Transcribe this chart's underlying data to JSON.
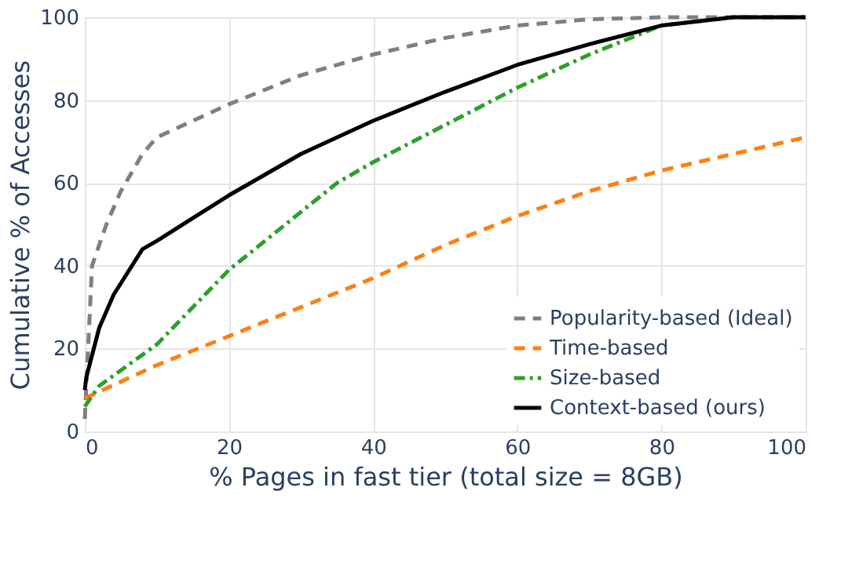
{
  "chart_data": {
    "type": "line",
    "xlabel": "% Pages in fast tier (total size = 8GB)",
    "ylabel": "Cumulative % of Accesses",
    "xlim": [
      0,
      100
    ],
    "ylim": [
      0,
      100
    ],
    "xticks": [
      0,
      20,
      40,
      60,
      80,
      100
    ],
    "yticks": [
      0,
      20,
      40,
      60,
      80,
      100
    ],
    "grid": true,
    "legend": "bottom right",
    "marker": "none",
    "series": [
      {
        "name": "Popularity-based (Ideal)",
        "color": "#7f7f7f",
        "line_style": "dashed",
        "x": [
          0,
          1,
          3,
          5,
          8,
          10,
          20,
          30,
          40,
          50,
          60,
          70,
          80,
          100
        ],
        "values": [
          3,
          40,
          50,
          58,
          67,
          71,
          79,
          86,
          91,
          95,
          98,
          99.5,
          100,
          100
        ]
      },
      {
        "name": "Time-based",
        "color": "#ff7f0e",
        "line_style": "dashed",
        "x": [
          0,
          5,
          10,
          20,
          30,
          40,
          50,
          60,
          70,
          80,
          90,
          100
        ],
        "values": [
          8,
          12,
          16,
          23,
          30,
          37,
          45,
          52,
          58,
          63,
          67,
          71
        ]
      },
      {
        "name": "Size-based",
        "color": "#2ca02c",
        "line_style": "dashdot",
        "x": [
          0,
          2,
          10,
          20,
          30,
          35,
          40,
          50,
          60,
          70,
          80,
          90,
          100
        ],
        "values": [
          6,
          11,
          21,
          39,
          53,
          60,
          65,
          74,
          83,
          91,
          98,
          100,
          100
        ]
      },
      {
        "name": "Context-based (ours)",
        "color": "#000000",
        "line_style": "solid",
        "x": [
          0,
          0.2,
          2,
          4,
          8,
          10,
          20,
          30,
          40,
          50,
          60,
          70,
          80,
          90,
          100
        ],
        "values": [
          10,
          13,
          25,
          33,
          44,
          46,
          57,
          67,
          75,
          82,
          88.5,
          93.5,
          98,
          100,
          100
        ]
      }
    ]
  }
}
